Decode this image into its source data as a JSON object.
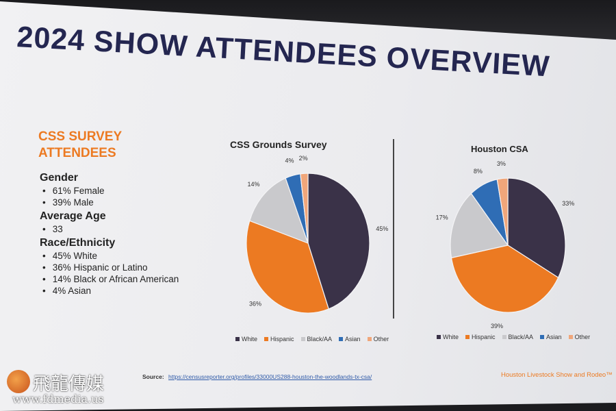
{
  "title": "2024 SHOW ATTENDEES OVERVIEW",
  "survey_heading": [
    "CSS SURVEY",
    "ATTENDEES"
  ],
  "facts": {
    "gender": {
      "heading": "Gender",
      "items": [
        "61% Female",
        "39% Male"
      ]
    },
    "age": {
      "heading": "Average Age",
      "items": [
        "33"
      ]
    },
    "race": {
      "heading": "Race/Ethnicity",
      "items": [
        "45% White",
        "36% Hispanic or Latino",
        "14% Black or African American",
        "4% Asian"
      ]
    }
  },
  "colors": {
    "title": "#242650",
    "accent_orange": "#ec7a22",
    "white_series": "#3a3248",
    "hispanic_series": "#ec7a22",
    "black_series": "#c9c9cc",
    "asian_series": "#2f6db5",
    "other_series": "#f0a67a"
  },
  "chart_data": [
    {
      "type": "pie",
      "title": "CSS Grounds Survey",
      "categories": [
        "White",
        "Hispanic",
        "Black/AA",
        "Asian",
        "Other"
      ],
      "values": [
        45,
        36,
        14,
        4,
        2
      ],
      "labels": [
        "45%",
        "36%",
        "14%",
        "4%",
        "2%"
      ],
      "legend": "bottom"
    },
    {
      "type": "pie",
      "title": "Houston CSA",
      "categories": [
        "White",
        "Hispanic",
        "Black/AA",
        "Asian",
        "Other"
      ],
      "values": [
        33,
        39,
        17,
        8,
        3
      ],
      "labels": [
        "33%",
        "39%",
        "17%",
        "8%",
        "3%"
      ],
      "legend": "bottom"
    }
  ],
  "source": {
    "label": "Source:",
    "url": "https://censusreporter.org/profiles/33000US288-houston-the-woodlands-tx-csa/"
  },
  "footer": "Houston Livestock Show and Rodeo™",
  "watermark": {
    "name": "飛龍傳媒",
    "url": "www.fdmedia.us"
  }
}
